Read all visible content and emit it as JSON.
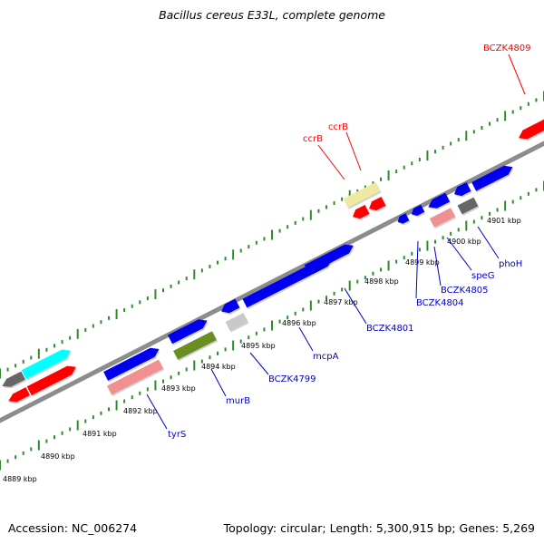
{
  "title": "Bacillus cereus E33L, complete genome",
  "footer": {
    "accession": "Accession: NC_006274",
    "summary": "Topology: circular; Length: 5,300,915 bp; Genes: 5,269"
  },
  "tick_labels": [
    "4889 kbp",
    "4890 kbp",
    "4891 kbp",
    "4892 kbp",
    "4893 kbp",
    "4894 kbp",
    "4895 kbp",
    "4896 kbp",
    "4897 kbp",
    "4898 kbp",
    "4899 kbp",
    "4900 kbp",
    "4901 kbp"
  ],
  "gene_labels": [
    {
      "text": "BCZK4809",
      "color": "#ff0000"
    },
    {
      "text": "ccrB",
      "color": "#ff0000"
    },
    {
      "text": "ccrB",
      "color": "#ff0000"
    },
    {
      "text": "tyrS",
      "color": "#0000cc"
    },
    {
      "text": "murB",
      "color": "#0000cc"
    },
    {
      "text": "BCZK4799",
      "color": "#0000cc"
    },
    {
      "text": "mcpA",
      "color": "#0000cc"
    },
    {
      "text": "BCZK4801",
      "color": "#0000cc"
    },
    {
      "text": "BCZK4804",
      "color": "#0000cc"
    },
    {
      "text": "BCZK4805",
      "color": "#0000cc"
    },
    {
      "text": "speG",
      "color": "#0000cc"
    },
    {
      "text": "phoH",
      "color": "#0000cc"
    }
  ],
  "colors": {
    "backbone": "#8c8c8c",
    "tick": "#2e8b2e",
    "blue": "#0000ee",
    "red": "#ff0000",
    "cyan": "#00ffff",
    "pink": "#f09090",
    "olive": "#6b8e23",
    "gray": "#666666",
    "lightgray": "#c8c8c8",
    "khaki": "#eee8a0"
  }
}
